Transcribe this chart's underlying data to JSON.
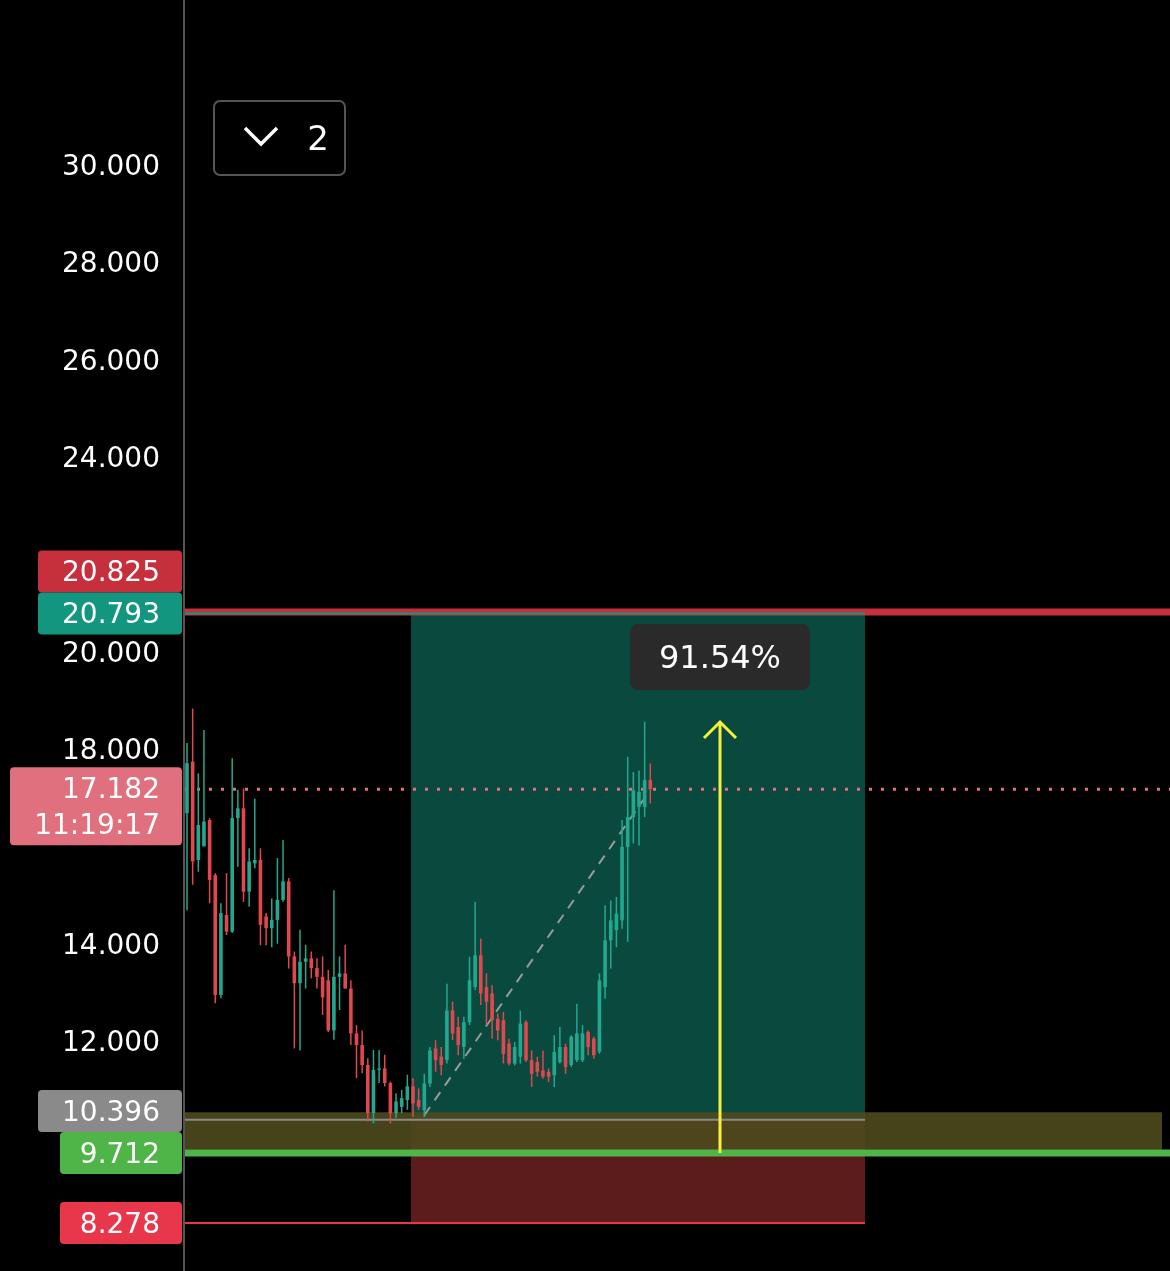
{
  "chart_data": {
    "type": "candlestick",
    "categories": [
      null,
      null,
      null,
      null,
      null,
      null,
      null,
      null,
      null,
      null,
      null,
      null,
      null,
      null,
      null,
      null,
      null,
      null,
      null,
      null,
      null,
      null,
      null,
      null,
      null,
      null,
      null,
      null,
      null,
      null,
      null,
      null,
      null,
      null,
      null,
      null,
      null,
      null,
      null,
      null,
      null,
      null,
      null,
      null,
      null,
      null,
      null,
      null,
      null,
      null,
      null,
      null,
      null,
      null,
      null,
      null,
      null,
      null,
      null,
      null,
      null,
      null,
      null,
      null,
      null,
      null,
      null,
      null,
      null,
      null,
      null,
      null,
      null,
      null,
      null,
      null,
      null,
      null,
      null,
      null,
      null,
      null,
      null
    ],
    "ohlc": [
      [
        16.69,
        18.13,
        14.7,
        17.72
      ],
      [
        17.75,
        18.84,
        15.22,
        15.7
      ],
      [
        15.73,
        17.51,
        15.49,
        16.45
      ],
      [
        16.01,
        18.4,
        16.01,
        16.52
      ],
      [
        16.55,
        16.59,
        14.84,
        15.32
      ],
      [
        15.42,
        15.46,
        12.79,
        12.96
      ],
      [
        12.96,
        14.84,
        12.89,
        14.64
      ],
      [
        14.6,
        15.46,
        14.19,
        14.26
      ],
      [
        14.26,
        17.82,
        14.23,
        16.59
      ],
      [
        16.59,
        17.17,
        15.59,
        16.79
      ],
      [
        16.79,
        17.2,
        14.87,
        15.08
      ],
      [
        15.08,
        15.97,
        14.77,
        15.7
      ],
      [
        15.66,
        16.99,
        15.56,
        15.73
      ],
      [
        15.73,
        15.97,
        13.98,
        14.4
      ],
      [
        14.57,
        14.64,
        13.98,
        14.33
      ],
      [
        14.33,
        14.94,
        13.94,
        14.5
      ],
      [
        14.5,
        15.77,
        14.01,
        14.91
      ],
      [
        14.91,
        16.14,
        14.87,
        15.29
      ],
      [
        15.29,
        15.36,
        13.5,
        13.75
      ],
      [
        13.75,
        13.85,
        11.86,
        13.2
      ],
      [
        13.2,
        14.3,
        11.82,
        13.64
      ],
      [
        13.64,
        13.99,
        13.09,
        13.71
      ],
      [
        13.71,
        13.85,
        13.3,
        13.51
      ],
      [
        13.51,
        13.71,
        13.09,
        13.33
      ],
      [
        13.33,
        13.75,
        12.55,
        12.91
      ],
      [
        13.26,
        13.47,
        12.2,
        12.23
      ],
      [
        12.23,
        15.11,
        12.04,
        13.33
      ],
      [
        13.33,
        13.75,
        12.65,
        13.4
      ],
      [
        13.4,
        13.99,
        13.09,
        13.09
      ],
      [
        13.09,
        13.26,
        11.93,
        12.17
      ],
      [
        12.17,
        12.34,
        11.25,
        11.93
      ],
      [
        11.93,
        12.23,
        11.35,
        11.52
      ],
      [
        11.52,
        11.66,
        10.36,
        10.53
      ],
      [
        10.53,
        11.83,
        10.32,
        11.42
      ],
      [
        11.42,
        11.83,
        11.15,
        11.45
      ],
      [
        11.45,
        11.73,
        11.08,
        11.15
      ],
      [
        11.15,
        11.18,
        10.32,
        10.53
      ],
      [
        10.53,
        10.94,
        10.43,
        10.77
      ],
      [
        10.66,
        11.01,
        10.53,
        10.84
      ],
      [
        10.8,
        11.32,
        10.6,
        11.08
      ],
      [
        11.08,
        11.25,
        10.46,
        10.73
      ],
      [
        10.8,
        11.04,
        10.6,
        10.66
      ],
      [
        10.59,
        11.34,
        10.45,
        11.14
      ],
      [
        11.14,
        11.89,
        11.07,
        11.82
      ],
      [
        11.86,
        12.03,
        11.38,
        11.62
      ],
      [
        11.69,
        11.89,
        11.31,
        11.52
      ],
      [
        11.62,
        13.19,
        11.55,
        12.64
      ],
      [
        12.64,
        12.82,
        12.03,
        12.17
      ],
      [
        12.3,
        12.51,
        11.72,
        11.93
      ],
      [
        11.89,
        12.51,
        11.65,
        12.4
      ],
      [
        12.4,
        13.74,
        12.34,
        13.26
      ],
      [
        13.12,
        14.87,
        13.06,
        13.77
      ],
      [
        13.77,
        14.12,
        12.75,
        12.99
      ],
      [
        13.12,
        13.4,
        12.34,
        12.82
      ],
      [
        12.99,
        13.16,
        12.06,
        12.44
      ],
      [
        12.47,
        12.58,
        12.03,
        12.23
      ],
      [
        12.44,
        12.61,
        11.55,
        11.75
      ],
      [
        11.96,
        12.06,
        11.51,
        11.55
      ],
      [
        11.55,
        11.99,
        11.51,
        11.89
      ],
      [
        11.69,
        12.64,
        11.55,
        12.37
      ],
      [
        12.4,
        12.44,
        11.58,
        11.62
      ],
      [
        11.62,
        11.82,
        11.07,
        11.34
      ],
      [
        11.58,
        11.69,
        11.28,
        11.38
      ],
      [
        11.41,
        11.82,
        11.24,
        11.28
      ],
      [
        11.38,
        11.45,
        11.17,
        11.28
      ],
      [
        11.31,
        12.13,
        11.07,
        11.79
      ],
      [
        11.58,
        12.3,
        11.55,
        11.89
      ],
      [
        11.89,
        11.96,
        11.34,
        11.48
      ],
      [
        11.52,
        12.13,
        11.48,
        12.1
      ],
      [
        11.62,
        12.78,
        11.58,
        12.17
      ],
      [
        11.62,
        12.34,
        11.58,
        12.17
      ],
      [
        12.2,
        12.23,
        11.72,
        11.89
      ],
      [
        12.06,
        12.1,
        11.65,
        11.72
      ],
      [
        11.79,
        13.4,
        11.75,
        13.26
      ],
      [
        13.12,
        14.8,
        12.88,
        14.08
      ],
      [
        14.08,
        14.9,
        13.5,
        14.49
      ],
      [
        14.29,
        14.97,
        13.94,
        14.63
      ],
      [
        14.49,
        16.55,
        14.32,
        16.0
      ],
      [
        16.0,
        17.85,
        14.05,
        16.61
      ],
      [
        16.61,
        17.54,
        16.07,
        17.16
      ],
      [
        16.82,
        17.57,
        16.03,
        17.13
      ],
      [
        16.82,
        18.57,
        16.61,
        17.37
      ],
      [
        17.37,
        17.71,
        16.89,
        17.182
      ]
    ],
    "series": [
      {
        "type": "line",
        "color": "#9a9a9a",
        "line_style": "dashed",
        "values": [
          null,
          null,
          null,
          null,
          null,
          null,
          null,
          null,
          null,
          null,
          null,
          null,
          null,
          null,
          null,
          null,
          null,
          null,
          null,
          null,
          null,
          null,
          null,
          null,
          null,
          null,
          null,
          null,
          null,
          null,
          null,
          null,
          null,
          null,
          null,
          null,
          null,
          null,
          null,
          null,
          null,
          null,
          10.49,
          null,
          null,
          null,
          null,
          null,
          null,
          null,
          null,
          null,
          null,
          null,
          null,
          null,
          null,
          null,
          null,
          null,
          null,
          null,
          null,
          null,
          null,
          null,
          null,
          null,
          null,
          null,
          null,
          null,
          null,
          null,
          null,
          null,
          null,
          null,
          null,
          null,
          null,
          null,
          17.17
        ]
      }
    ],
    "ylim": [
      7.29,
      33.39
    ],
    "yticks": [
      {
        "value": 12,
        "label": "12.000"
      },
      {
        "value": 14,
        "label": "14.000"
      },
      {
        "value": 18,
        "label": "18.000"
      },
      {
        "value": 20,
        "label": "20.000"
      },
      {
        "value": 24,
        "label": "24.000"
      },
      {
        "value": 26,
        "label": "26.000"
      },
      {
        "value": 28,
        "label": "28.000"
      },
      {
        "value": 30,
        "label": "30.000"
      }
    ],
    "tick_labels": "y",
    "ref_lines": [
      {
        "axis": "y",
        "value": 20.825,
        "label": "20.825",
        "color": "#c62f3c",
        "line_style": "solid"
      },
      {
        "axis": "y",
        "value": 20.793,
        "label": "20.793",
        "color": "#129680"
      },
      {
        "axis": "y",
        "value": 17.182,
        "label": "17.182",
        "color": "#e0707d",
        "line_style": "dotted"
      },
      {
        "axis": "y",
        "value": 10.396,
        "label": "10.396",
        "color": "#8a8a8a"
      },
      {
        "axis": "y",
        "value": 9.712,
        "label": "9.712",
        "color": "#4fb548",
        "line_style": "solid"
      },
      {
        "axis": "y",
        "value": 8.278,
        "label": "8.278",
        "color": "#e8374a"
      }
    ],
    "bands": [
      {
        "axis": "y",
        "from": 10.396,
        "to": 20.793,
        "color": "#0a4a3e"
      },
      {
        "axis": "y",
        "from": 8.278,
        "to": 10.396,
        "color": "#5c1c1c"
      },
      {
        "axis": "y",
        "from": 9.78,
        "to": 10.55,
        "color": "#4e4a1e"
      }
    ],
    "annotations": [
      "91.54%",
      "11:19:17",
      "2"
    ]
  }
}
